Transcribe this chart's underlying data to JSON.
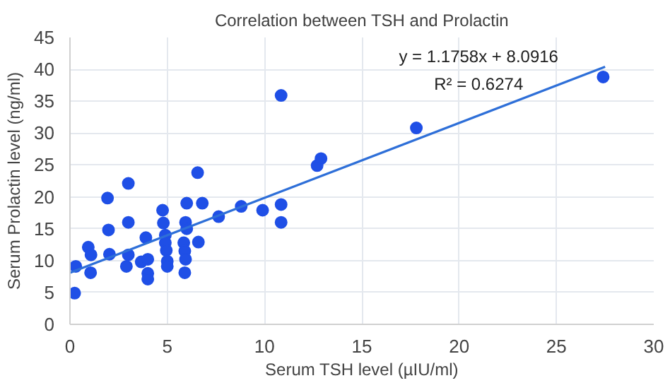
{
  "chart_data": {
    "type": "scatter",
    "title": "Correlation between TSH and Prolactin",
    "xlabel": "Serum TSH level (µIU/ml)",
    "ylabel": "Serum Prolactin level (ng/ml)",
    "xlim": [
      0,
      30
    ],
    "ylim": [
      0,
      45
    ],
    "xticks": [
      0,
      5,
      10,
      15,
      20,
      25,
      30
    ],
    "yticks": [
      0,
      5,
      10,
      15,
      20,
      25,
      30,
      35,
      40,
      45
    ],
    "grid": true,
    "annotations": [
      "y = 1.1758x + 8.0916",
      "R² = 0.6274"
    ],
    "series": [
      {
        "marker": "circle",
        "color": "#1f4fe6",
        "x": [
          0.24,
          0.3,
          0.94,
          1.08,
          1.06,
          1.93,
          1.98,
          2.03,
          3.0,
          3.0,
          3.0,
          2.9,
          3.66,
          3.9,
          4.0,
          4.0,
          4.0,
          4.76,
          4.8,
          4.9,
          4.9,
          4.95,
          5.0,
          5.0,
          6.0,
          5.94,
          6.0,
          5.85,
          5.9,
          5.94,
          5.9,
          6.56,
          6.6,
          6.8,
          7.64,
          8.8,
          9.9,
          10.85,
          10.85,
          10.85,
          12.7,
          12.9,
          17.8,
          27.4
        ],
        "values": [
          4.9,
          9.1,
          12.1,
          10.9,
          8.1,
          19.8,
          14.8,
          11.0,
          22.1,
          16.0,
          10.9,
          9.1,
          9.8,
          13.6,
          10.2,
          8.0,
          7.1,
          17.9,
          15.9,
          14.0,
          12.8,
          11.6,
          9.9,
          9.1,
          19.0,
          16.0,
          15.0,
          12.8,
          11.5,
          10.2,
          8.1,
          23.8,
          12.9,
          19.0,
          16.9,
          18.5,
          17.9,
          35.9,
          18.8,
          16.0,
          24.9,
          26.0,
          30.8,
          38.8
        ]
      },
      {
        "type": "line",
        "color": "#2e6fd8",
        "x": [
          0,
          27.5
        ],
        "values": [
          8.1,
          40.4
        ]
      }
    ]
  }
}
